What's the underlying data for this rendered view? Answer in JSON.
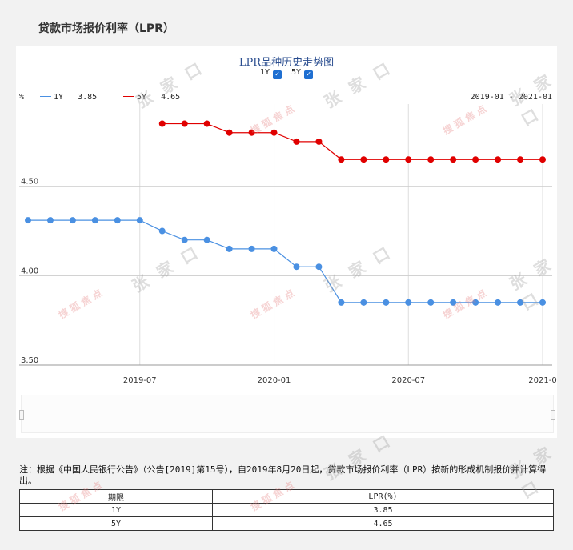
{
  "page_title": "贷款市场报价利率（LPR）",
  "chart_data": {
    "type": "line",
    "title": "LPR品种历史走势图",
    "unit": "%",
    "range_label": "2019-01  - 2021-01",
    "toggles": [
      {
        "label": "1Y"
      },
      {
        "label": "5Y"
      }
    ],
    "y_ticks": [
      "3.50",
      "4.00",
      "4.50"
    ],
    "ylim": [
      3.5,
      4.96
    ],
    "x_ticks": [
      "2019-07",
      "2020-01",
      "2020-07",
      "2021-0"
    ],
    "x": [
      "2019-02",
      "2019-03",
      "2019-04",
      "2019-05",
      "2019-06",
      "2019-07",
      "2019-08",
      "2019-09",
      "2019-10",
      "2019-11",
      "2019-12",
      "2020-01",
      "2020-02",
      "2020-03",
      "2020-04",
      "2020-05",
      "2020-06",
      "2020-07",
      "2020-08",
      "2020-09",
      "2020-10",
      "2020-11",
      "2020-12",
      "2021-01"
    ],
    "series": [
      {
        "name": "1Y",
        "legend_value": "3.85",
        "color": "#4a90e2",
        "values": [
          4.31,
          4.31,
          4.31,
          4.31,
          4.31,
          4.31,
          4.25,
          4.2,
          4.2,
          4.15,
          4.15,
          4.15,
          4.05,
          4.05,
          3.85,
          3.85,
          3.85,
          3.85,
          3.85,
          3.85,
          3.85,
          3.85,
          3.85,
          3.85
        ]
      },
      {
        "name": "5Y",
        "legend_value": "4.65",
        "color": "#e00000",
        "values": [
          null,
          null,
          null,
          null,
          null,
          null,
          4.85,
          4.85,
          4.85,
          4.8,
          4.8,
          4.8,
          4.75,
          4.75,
          4.65,
          4.65,
          4.65,
          4.65,
          4.65,
          4.65,
          4.65,
          4.65,
          4.65,
          4.65
        ]
      }
    ]
  },
  "note": "注：根据《中国人民银行公告》（公告[2019]第15号），自2019年8月20日起，贷款市场报价利率（LPR）按新的形成机制报价并计算得出。",
  "table": {
    "headers": [
      "期限",
      "LPR(%)"
    ],
    "rows": [
      [
        "1Y",
        "3.85"
      ],
      [
        "5Y",
        "4.65"
      ]
    ]
  },
  "watermarks": {
    "brand": "搜狐焦点",
    "seal": "张 家 口"
  }
}
